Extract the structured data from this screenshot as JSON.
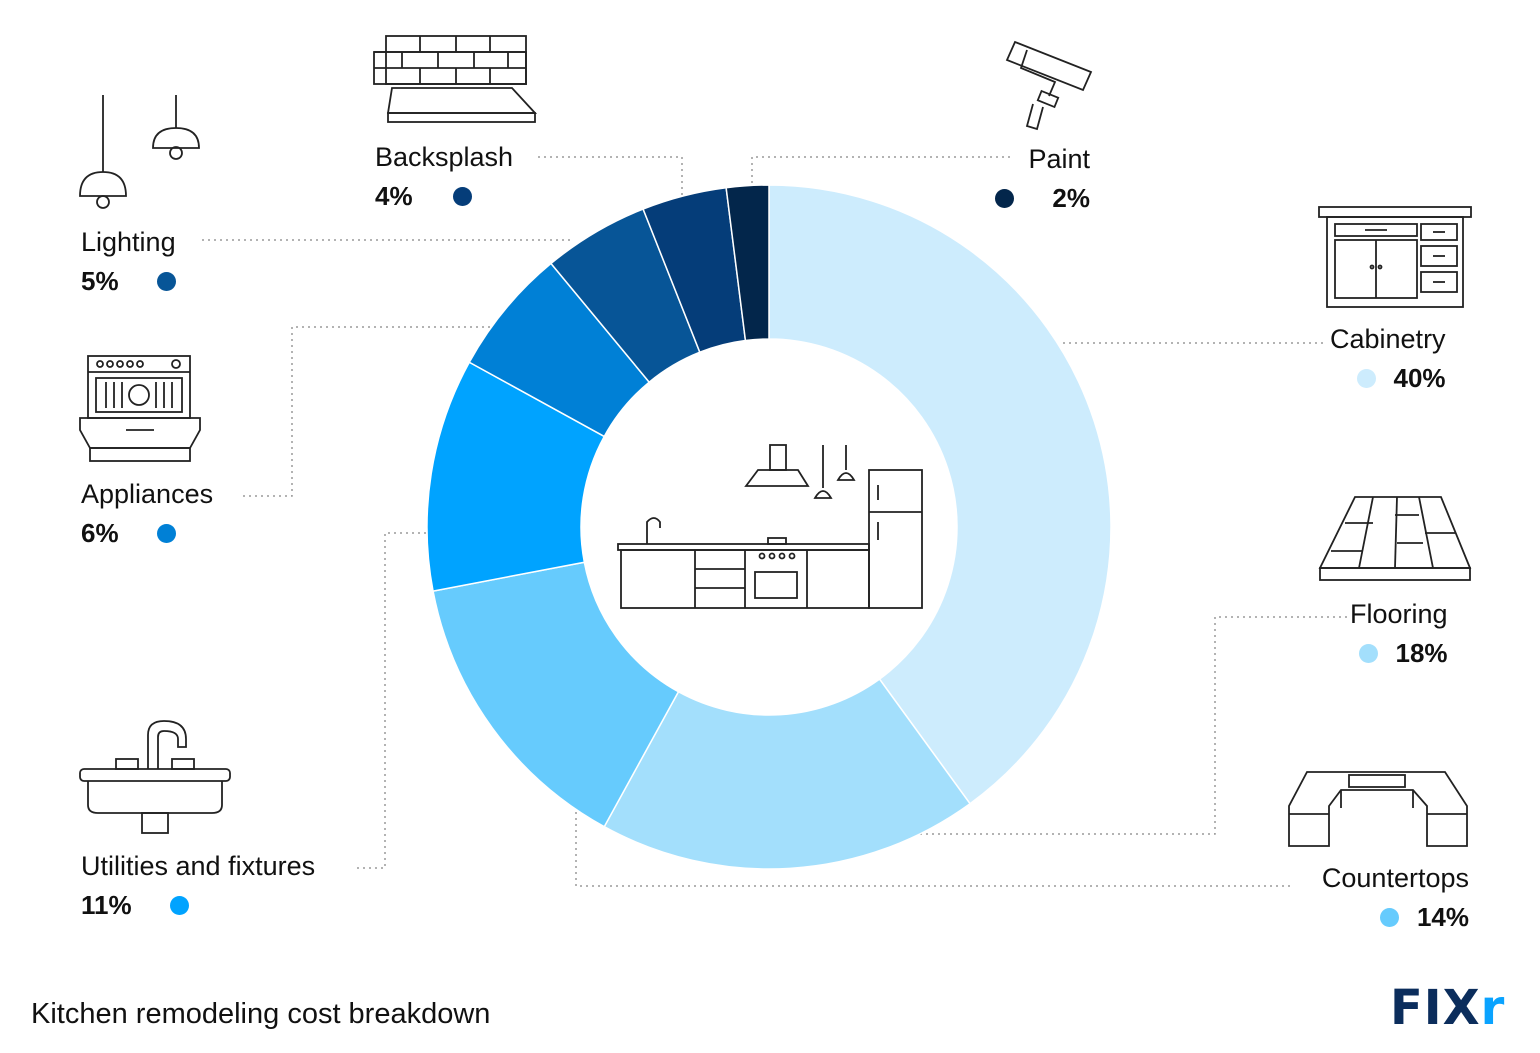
{
  "chart_data": {
    "type": "pie",
    "subtype": "donut",
    "categories": [
      "Cabinetry",
      "Flooring",
      "Countertops",
      "Utilities and fixtures",
      "Appliances",
      "Lighting",
      "Backsplash",
      "Paint"
    ],
    "values": [
      40,
      18,
      14,
      11,
      6,
      5,
      4,
      2
    ],
    "value_labels": [
      "40%",
      "18%",
      "14%",
      "11%",
      "6%",
      "5%",
      "4%",
      "2%"
    ],
    "colors": [
      "#cdecfd",
      "#a3dffc",
      "#66cbfd",
      "#00a3ff",
      "#0080d6",
      "#075597",
      "#053d79",
      "#03264b"
    ],
    "legend": "labels around the chart with leader lines"
  },
  "caption": "Kitchen remodeling cost breakdown",
  "brand": {
    "prefix": "FIX",
    "suffix": "r"
  },
  "icons": {
    "cabinetry": "cabinet-icon",
    "flooring": "floor-planks-icon",
    "countertops": "countertop-icon",
    "utilities": "sink-icon",
    "appliances": "dishwasher-icon",
    "lighting": "pendant-lamp-icon",
    "backsplash": "brick-wall-icon",
    "paint": "paint-roller-icon",
    "center": "kitchen-icon"
  }
}
